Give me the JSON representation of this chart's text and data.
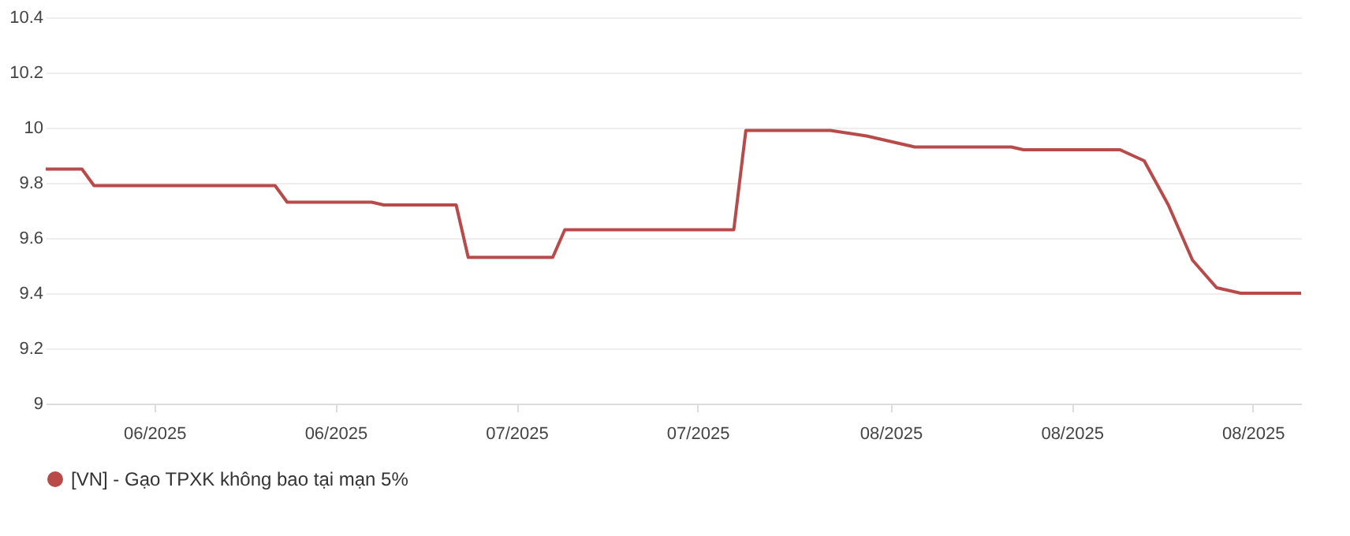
{
  "chart_data": {
    "type": "line",
    "x": [
      "2025-05-23",
      "2025-05-26",
      "2025-05-27",
      "2025-06-11",
      "2025-06-12",
      "2025-06-19",
      "2025-06-20",
      "2025-06-26",
      "2025-06-27",
      "2025-07-04",
      "2025-07-05",
      "2025-07-19",
      "2025-07-20",
      "2025-07-27",
      "2025-07-30",
      "2025-08-03",
      "2025-08-11",
      "2025-08-12",
      "2025-08-20",
      "2025-08-22",
      "2025-08-24",
      "2025-08-26",
      "2025-08-28",
      "2025-08-30",
      "2025-09-04"
    ],
    "series": [
      {
        "name": "[VN] - Gạo TPXK không bao tại mạn 5%",
        "color": "#b94a4a",
        "values": [
          9.85,
          9.85,
          9.79,
          9.79,
          9.73,
          9.73,
          9.72,
          9.72,
          9.53,
          9.53,
          9.63,
          9.63,
          9.99,
          9.99,
          9.97,
          9.93,
          9.93,
          9.92,
          9.92,
          9.88,
          9.72,
          9.52,
          9.42,
          9.4,
          9.4
        ]
      }
    ],
    "xlim": [
      "2025-05-23",
      "2025-09-04"
    ],
    "xticks": [
      {
        "value": "2025-06-01",
        "label": "06/2025"
      },
      {
        "value": "2025-06-16",
        "label": "06/2025"
      },
      {
        "value": "2025-07-01",
        "label": "07/2025"
      },
      {
        "value": "2025-07-16",
        "label": "07/2025"
      },
      {
        "value": "2025-08-01",
        "label": "08/2025"
      },
      {
        "value": "2025-08-16",
        "label": "08/2025"
      },
      {
        "value": "2025-08-31",
        "label": "08/2025"
      }
    ],
    "ylim": [
      9,
      10.4
    ],
    "yticks": [
      9,
      9.2,
      9.4,
      9.6,
      9.8,
      10,
      10.2,
      10.4
    ],
    "grid": "y",
    "legend": "bottom",
    "marker": "none",
    "line_style": "solid"
  }
}
